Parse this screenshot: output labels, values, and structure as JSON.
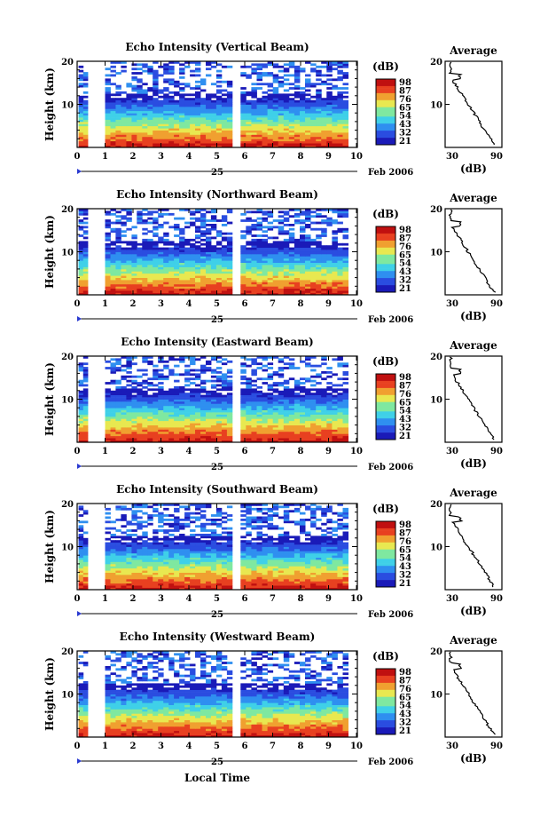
{
  "chart_data": [
    {
      "type": "heatmap",
      "title": "Echo Intensity (Vertical Beam)",
      "ylabel": "Height (km)",
      "y_ticks": [
        "10",
        "20"
      ],
      "x_ticks": [
        "0",
        "1",
        "2",
        "3",
        "4",
        "5",
        "6",
        "7",
        "8",
        "9",
        "10"
      ],
      "colorbar_unit": "(dB)",
      "colorbar_ticks": [
        "98",
        "87",
        "76",
        "65",
        "54",
        "43",
        "32",
        "21"
      ],
      "profile": {
        "title": "Average",
        "x_ticks": [
          "30",
          "90"
        ],
        "xlabel": "(dB)",
        "y_ticks": [
          "10",
          "20"
        ]
      },
      "date_marker": "25",
      "date_label": "Feb 2006"
    },
    {
      "type": "heatmap",
      "title": "Echo Intensity (Northward Beam)",
      "ylabel": "Height (km)",
      "y_ticks": [
        "10",
        "20"
      ],
      "x_ticks": [
        "0",
        "1",
        "2",
        "3",
        "4",
        "5",
        "6",
        "7",
        "8",
        "9",
        "10"
      ],
      "colorbar_unit": "(dB)",
      "colorbar_ticks": [
        "98",
        "87",
        "76",
        "65",
        "54",
        "43",
        "32",
        "21"
      ],
      "profile": {
        "title": "Average",
        "x_ticks": [
          "30",
          "90"
        ],
        "xlabel": "(dB)",
        "y_ticks": [
          "10",
          "20"
        ]
      },
      "date_marker": "25",
      "date_label": "Feb 2006"
    },
    {
      "type": "heatmap",
      "title": "Echo Intensity (Eastward Beam)",
      "ylabel": "Height (km)",
      "y_ticks": [
        "10",
        "20"
      ],
      "x_ticks": [
        "0",
        "1",
        "2",
        "3",
        "4",
        "5",
        "6",
        "7",
        "8",
        "9",
        "10"
      ],
      "colorbar_unit": "(dB)",
      "colorbar_ticks": [
        "98",
        "87",
        "76",
        "65",
        "54",
        "43",
        "32",
        "21"
      ],
      "profile": {
        "title": "Average",
        "x_ticks": [
          "30",
          "90"
        ],
        "xlabel": "(dB)",
        "y_ticks": [
          "10",
          "20"
        ]
      },
      "date_marker": "25",
      "date_label": "Feb 2006"
    },
    {
      "type": "heatmap",
      "title": "Echo Intensity (Southward Beam)",
      "ylabel": "Height (km)",
      "y_ticks": [
        "10",
        "20"
      ],
      "x_ticks": [
        "0",
        "1",
        "2",
        "3",
        "4",
        "5",
        "6",
        "7",
        "8",
        "9",
        "10"
      ],
      "colorbar_unit": "(dB)",
      "colorbar_ticks": [
        "98",
        "87",
        "76",
        "65",
        "54",
        "43",
        "32",
        "21"
      ],
      "profile": {
        "title": "Average",
        "x_ticks": [
          "30",
          "90"
        ],
        "xlabel": "(dB)",
        "y_ticks": [
          "10",
          "20"
        ]
      },
      "date_marker": "25",
      "date_label": "Feb 2006"
    },
    {
      "type": "heatmap",
      "title": "Echo Intensity (Westward Beam)",
      "ylabel": "Height (km)",
      "y_ticks": [
        "10",
        "20"
      ],
      "x_ticks": [
        "0",
        "1",
        "2",
        "3",
        "4",
        "5",
        "6",
        "7",
        "8",
        "9",
        "10"
      ],
      "colorbar_unit": "(dB)",
      "colorbar_ticks": [
        "98",
        "87",
        "76",
        "65",
        "54",
        "43",
        "32",
        "21"
      ],
      "profile": {
        "title": "Average",
        "x_ticks": [
          "30",
          "90"
        ],
        "xlabel": "(dB)",
        "y_ticks": [
          "10",
          "20"
        ]
      },
      "date_marker": "25",
      "date_label": "Feb 2006"
    }
  ],
  "figure": {
    "xlabel": "Local Time"
  },
  "colors": {
    "colormap": [
      "#1a1ab8",
      "#2a4de0",
      "#2f8ff0",
      "#3fd0e8",
      "#7fe8a0",
      "#e8e850",
      "#f0a030",
      "#e84020",
      "#c01010"
    ]
  }
}
